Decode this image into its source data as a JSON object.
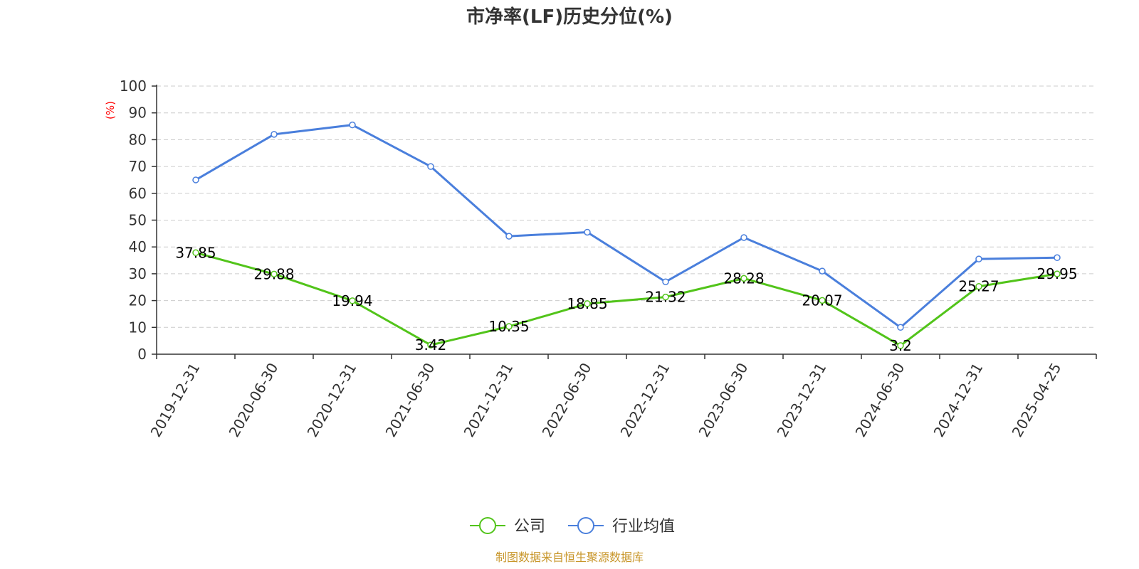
{
  "chart_data": {
    "type": "line",
    "title": "市净率(LF)历史分位(%)",
    "ylabel": "(%)",
    "ylim": [
      0,
      100
    ],
    "yticks": [
      0,
      10,
      20,
      30,
      40,
      50,
      60,
      70,
      80,
      90,
      100
    ],
    "grid": true,
    "legend_position": "bottom-center",
    "categories": [
      "2019-12-31",
      "2020-06-30",
      "2020-12-31",
      "2021-06-30",
      "2021-12-31",
      "2022-06-30",
      "2022-12-31",
      "2023-06-30",
      "2023-12-31",
      "2024-06-30",
      "2024-12-31",
      "2025-04-25"
    ],
    "series": [
      {
        "name": "公司",
        "color": "#52c41a",
        "show_labels": true,
        "values": [
          37.85,
          29.88,
          19.94,
          3.42,
          10.35,
          18.85,
          21.32,
          28.28,
          20.07,
          3.2,
          25.27,
          29.95
        ],
        "labels": [
          "37.85",
          "29.88",
          "19.94",
          "3.42",
          "10.35",
          "18.85",
          "21.32",
          "28.28",
          "20.07",
          "3.2",
          "25.27",
          "29.95"
        ]
      },
      {
        "name": "行业均值",
        "color": "#4a7fdc",
        "show_labels": false,
        "values": [
          65,
          82,
          85.5,
          70,
          44,
          45.5,
          27,
          43.5,
          31,
          10,
          35.5,
          36
        ]
      }
    ],
    "source": "制图数据来自恒生聚源数据库"
  }
}
